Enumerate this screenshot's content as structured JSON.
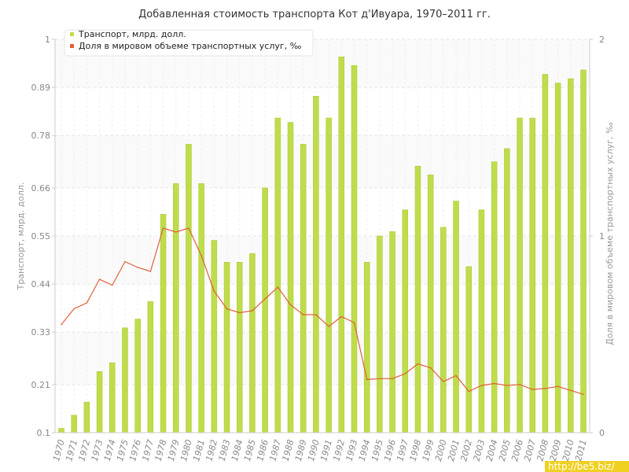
{
  "chart_data": {
    "type": "bar",
    "title": "Добавленная стоимость транспорта Кот д'Ивуара, 1970–2011 гг.",
    "categories": [
      "1970",
      "1971",
      "1972",
      "1973",
      "1974",
      "1975",
      "1976",
      "1977",
      "1978",
      "1979",
      "1980",
      "1981",
      "1982",
      "1983",
      "1984",
      "1985",
      "1986",
      "1987",
      "1988",
      "1989",
      "1990",
      "1991",
      "1992",
      "1993",
      "1994",
      "1995",
      "1996",
      "1997",
      "1998",
      "1999",
      "2000",
      "2001",
      "2002",
      "2003",
      "2004",
      "2005",
      "2006",
      "2007",
      "2008",
      "2009",
      "2010",
      "2011"
    ],
    "series": [
      {
        "name": "Транспорт, млрд. долл.",
        "type": "bar",
        "axis": "left",
        "color": "#bfdc4a",
        "values": [
          0.11,
          0.14,
          0.17,
          0.24,
          0.26,
          0.34,
          0.36,
          0.4,
          0.6,
          0.67,
          0.76,
          0.67,
          0.54,
          0.49,
          0.49,
          0.51,
          0.66,
          0.82,
          0.81,
          0.76,
          0.87,
          0.82,
          0.96,
          0.94,
          0.49,
          0.55,
          0.56,
          0.61,
          0.71,
          0.69,
          0.57,
          0.63,
          0.48,
          0.61,
          0.72,
          0.75,
          0.82,
          0.82,
          0.92,
          0.9,
          0.91,
          0.93
        ]
      },
      {
        "name": "Доля в мировом объеме транспортных услуг, ‰",
        "type": "line",
        "axis": "right",
        "color": "#e0603a",
        "values": [
          0.55,
          0.63,
          0.66,
          0.78,
          0.75,
          0.87,
          0.84,
          0.82,
          1.04,
          1.02,
          1.04,
          0.9,
          0.72,
          0.63,
          0.61,
          0.62,
          0.68,
          0.74,
          0.65,
          0.6,
          0.6,
          0.54,
          0.59,
          0.56,
          0.27,
          0.275,
          0.275,
          0.3,
          0.35,
          0.33,
          0.26,
          0.29,
          0.21,
          0.24,
          0.25,
          0.24,
          0.245,
          0.22,
          0.225,
          0.235,
          0.215,
          0.195
        ]
      }
    ],
    "ylabel": "Транспорт, млрд. долл.",
    "y2label": "Доля в мировом объеме транспортных услуг, ‰",
    "ylim": [
      0.1,
      1
    ],
    "yticks": [
      "0.1",
      "0.21",
      "0.33",
      "0.44",
      "0.55",
      "0.66",
      "0.78",
      "0.89",
      "1"
    ],
    "y2lim": [
      0,
      2
    ],
    "y2ticks": [
      "0",
      "1",
      "2"
    ],
    "grid": true,
    "legend": "top-left"
  },
  "watermark": "http://be5.biz/"
}
